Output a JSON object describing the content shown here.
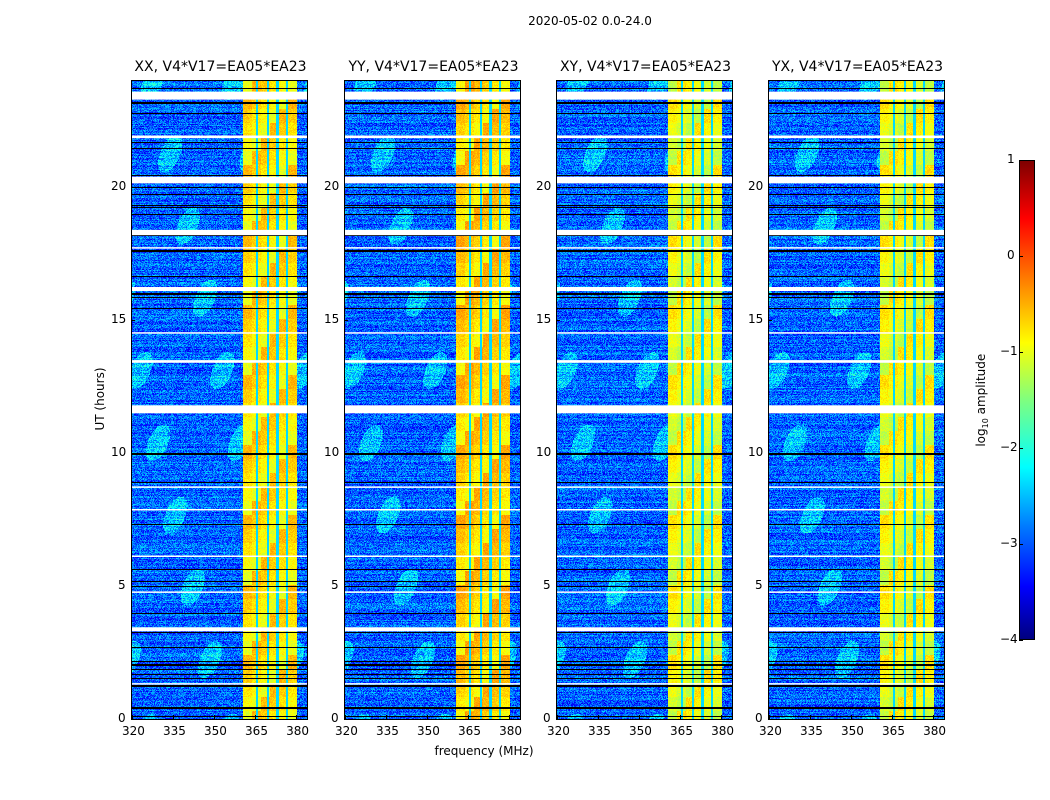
{
  "suptitle": "2020-05-02 0.0-24.0",
  "colors": {
    "flagged": "#ffffff",
    "axis": "#000000"
  },
  "chart_data": {
    "type": "heatmap",
    "title": "2020-05-02 0.0-24.0",
    "xlabel": "frequency (MHz)",
    "ylabel": "UT (hours)",
    "xlim": [
      320,
      384
    ],
    "ylim": [
      0,
      24
    ],
    "xticks": [
      "320",
      "335",
      "350",
      "365",
      "380"
    ],
    "yticks": [
      "0",
      "5",
      "10",
      "15",
      "20"
    ],
    "colormap": "jet",
    "colorbar": {
      "label_main": "log",
      "label_sub": "10",
      "label_rest": " amplitude",
      "range": [
        -4,
        1
      ],
      "ticks": [
        "1",
        "0",
        "−1",
        "−2",
        "−3",
        "−4"
      ],
      "tick_values": [
        1,
        0,
        -1,
        -2,
        -3,
        -4
      ]
    },
    "panels": [
      {
        "title": "XX, V4*V17=EA05*EA23",
        "background_level": -2.9,
        "band": [
          360.5,
          380
        ],
        "band_level": -0.8
      },
      {
        "title": "YY, V4*V17=EA05*EA23",
        "background_level": -2.9,
        "band": [
          360.5,
          380
        ],
        "band_level": -0.7
      },
      {
        "title": "XY, V4*V17=EA05*EA23",
        "background_level": -2.9,
        "band": [
          360.5,
          380
        ],
        "band_level": -1.0
      },
      {
        "title": "YX, V4*V17=EA05*EA23",
        "background_level": -2.9,
        "band": [
          360.5,
          380
        ],
        "band_level": -1.0
      }
    ],
    "band_gaps_MHz": [
      365.5,
      369.5,
      373,
      376.5
    ],
    "flagged_UT_ranges": [
      [
        23.3,
        23.6
      ],
      [
        21.85,
        21.95
      ],
      [
        20.15,
        20.4
      ],
      [
        18.2,
        18.4
      ],
      [
        17.7,
        17.75
      ],
      [
        16.1,
        16.25
      ],
      [
        14.5,
        14.55
      ],
      [
        13.4,
        13.5
      ],
      [
        11.5,
        11.8
      ],
      [
        8.7,
        8.75
      ],
      [
        7.85,
        7.9
      ],
      [
        6.1,
        6.15
      ],
      [
        4.75,
        4.8
      ],
      [
        3.3,
        3.45
      ],
      [
        1.3,
        1.35
      ]
    ]
  }
}
